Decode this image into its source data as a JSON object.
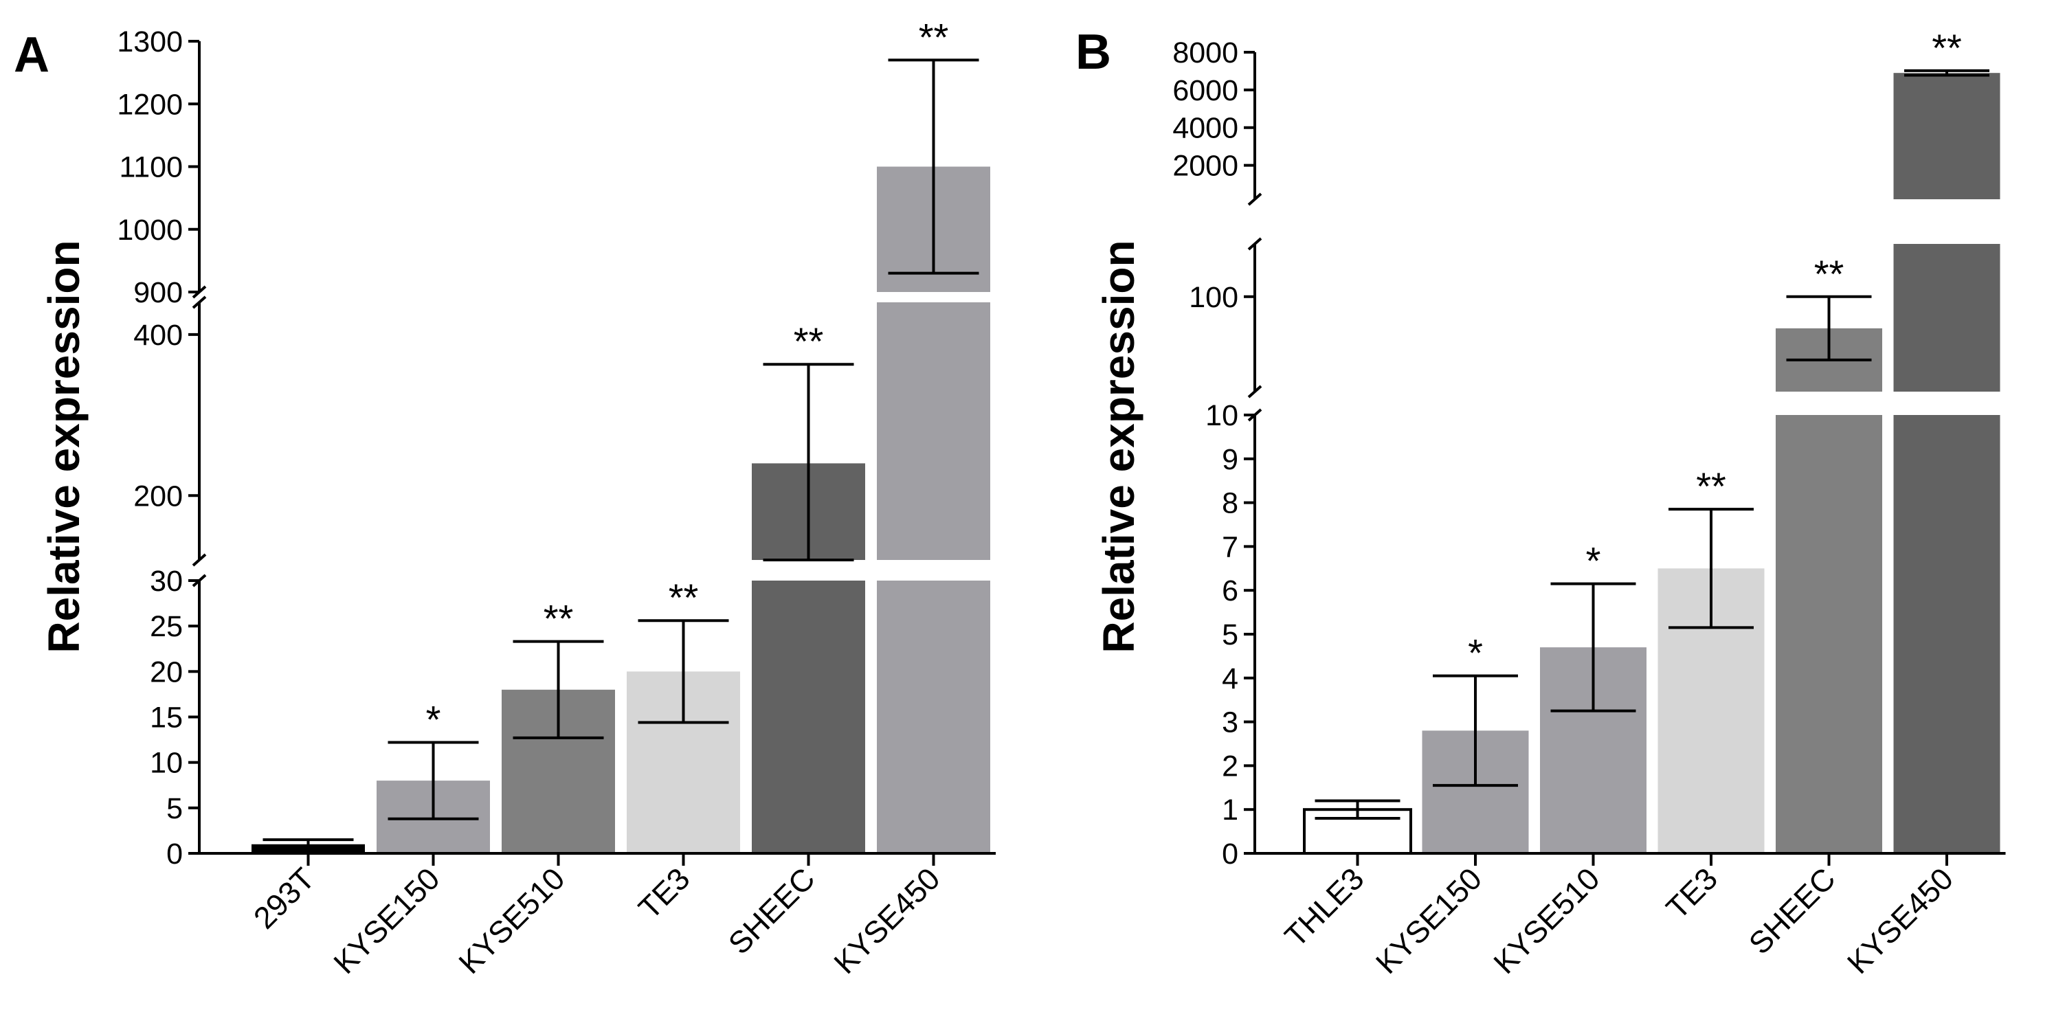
{
  "chart_data": [
    {
      "panel": "A",
      "type": "bar",
      "broken_axis": true,
      "ylabel": "Relative expression",
      "categories": [
        "293T",
        "KYSE150",
        "KYSE510",
        "TE3",
        "SHEEC",
        "KYSE450"
      ],
      "values": [
        1,
        8,
        18,
        20,
        240,
        1100
      ],
      "errors": [
        0.5,
        4.2,
        5.3,
        5.6,
        123,
        170
      ],
      "significance": [
        "",
        "*",
        "**",
        "**",
        "**",
        "**"
      ],
      "colors": [
        "#000000",
        "#a09fa4",
        "#808080",
        "#d6d6d6",
        "#626262",
        "#a09fa4"
      ],
      "segments": [
        {
          "range": [
            0,
            30
          ],
          "ticks": [
            0,
            5,
            10,
            15,
            20,
            25,
            30
          ]
        },
        {
          "range": [
            120,
            440
          ],
          "ticks": [
            200,
            400
          ]
        },
        {
          "range": [
            900,
            1300
          ],
          "ticks": [
            900,
            1000,
            1100,
            1200,
            1300
          ]
        }
      ]
    },
    {
      "panel": "B",
      "type": "bar",
      "broken_axis": true,
      "ylabel": "Relative expression",
      "categories": [
        "THLE3",
        "KYSE150",
        "KYSE510",
        "TE3",
        "SHEEC",
        "KYSE450"
      ],
      "values": [
        1,
        2.8,
        4.7,
        6.5,
        70,
        6900
      ],
      "errors": [
        0.2,
        1.25,
        1.45,
        1.35,
        30,
        120
      ],
      "significance": [
        "",
        "*",
        "*",
        "**",
        "**",
        "**"
      ],
      "colors": [
        "#ffffff",
        "#a09fa4",
        "#a09fa4",
        "#d6d6d6",
        "#808080",
        "#626262"
      ],
      "segments": [
        {
          "range": [
            0,
            10
          ],
          "ticks": [
            0,
            1,
            2,
            3,
            4,
            5,
            6,
            7,
            8,
            9,
            10
          ]
        },
        {
          "range": [
            10,
            150
          ],
          "ticks": [
            100
          ]
        },
        {
          "range": [
            200,
            8000
          ],
          "ticks": [
            2000,
            4000,
            6000,
            8000
          ]
        }
      ]
    }
  ]
}
